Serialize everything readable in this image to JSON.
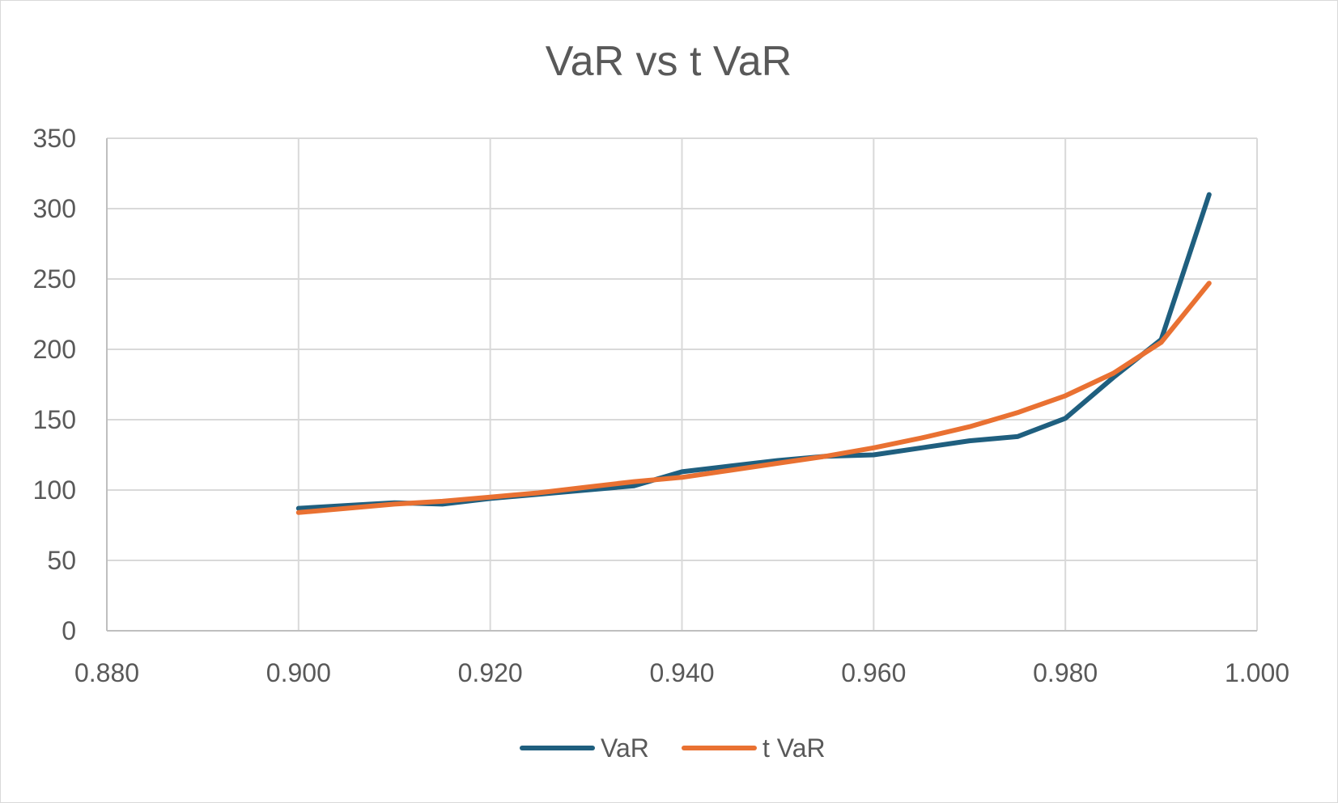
{
  "chart_data": {
    "type": "line",
    "title": "VaR vs t VaR",
    "xlabel": "",
    "ylabel": "",
    "xlim": [
      0.88,
      1.0
    ],
    "ylim": [
      0,
      350
    ],
    "x_ticks": [
      "0.880",
      "0.900",
      "0.920",
      "0.940",
      "0.960",
      "0.980",
      "1.000"
    ],
    "y_ticks": [
      "0",
      "50",
      "100",
      "150",
      "200",
      "250",
      "300",
      "350"
    ],
    "grid": true,
    "legend_position": "bottom",
    "series": [
      {
        "name": "VaR",
        "color": "#1f5f7f",
        "x": [
          0.9,
          0.905,
          0.91,
          0.915,
          0.92,
          0.925,
          0.93,
          0.935,
          0.94,
          0.945,
          0.95,
          0.955,
          0.96,
          0.965,
          0.97,
          0.975,
          0.98,
          0.985,
          0.99,
          0.995
        ],
        "y": [
          87,
          89,
          91,
          90,
          94,
          97,
          100,
          103,
          113,
          117,
          121,
          124,
          125,
          130,
          135,
          138,
          151,
          180,
          207,
          310
        ]
      },
      {
        "name": "t VaR",
        "color": "#e97132",
        "x": [
          0.9,
          0.905,
          0.91,
          0.915,
          0.92,
          0.925,
          0.93,
          0.935,
          0.94,
          0.945,
          0.95,
          0.955,
          0.96,
          0.965,
          0.97,
          0.975,
          0.98,
          0.985,
          0.99,
          0.995
        ],
        "y": [
          84,
          87,
          90,
          92,
          95,
          98,
          102,
          106,
          109,
          114,
          119,
          124,
          130,
          137,
          145,
          155,
          167,
          183,
          205,
          247
        ]
      }
    ]
  }
}
